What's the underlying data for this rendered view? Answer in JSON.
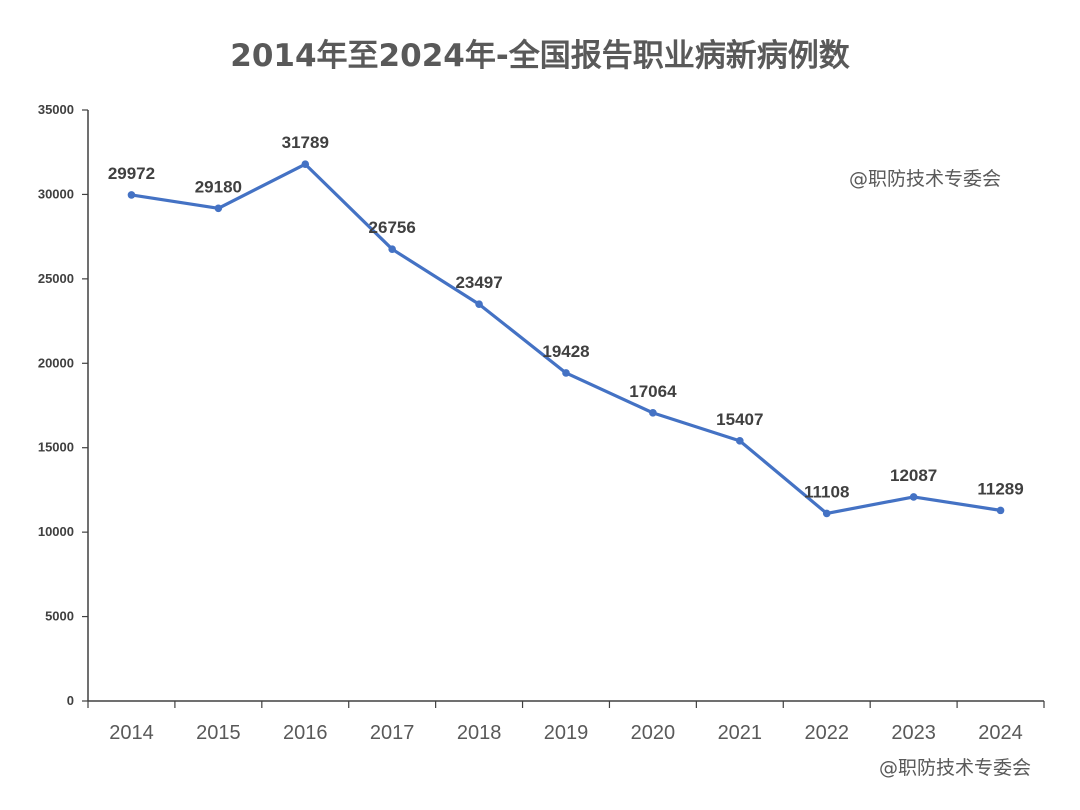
{
  "watermark": "@职防技术专委会",
  "colors": {
    "line": "#4472C4",
    "axis": "#404040",
    "text": "#404040",
    "title": "#595959"
  },
  "chart_data": {
    "type": "line",
    "title": "2014年至2024年-全国报告职业病新病例数",
    "xlabel": "",
    "ylabel": "",
    "categories": [
      "2014",
      "2015",
      "2016",
      "2017",
      "2018",
      "2019",
      "2020",
      "2021",
      "2022",
      "2023",
      "2024"
    ],
    "series": [
      {
        "values": [
          29972,
          29180,
          31789,
          26756,
          23497,
          19428,
          17064,
          15407,
          11108,
          12087,
          11289
        ]
      }
    ],
    "ylim": [
      0,
      35000
    ],
    "yticks": [
      0,
      5000,
      10000,
      15000,
      20000,
      25000,
      30000,
      35000
    ],
    "data_labels": true,
    "grid": false,
    "legend": "none"
  }
}
